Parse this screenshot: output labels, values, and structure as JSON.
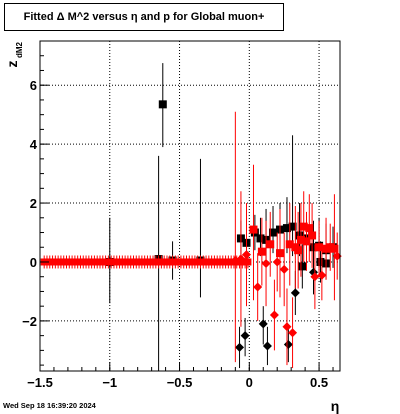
{
  "chart_data": {
    "type": "scatter",
    "title": "Fitted Δ M^2 versus η and p for Global muon+",
    "xlabel": "η",
    "ylabel": "z",
    "ylabel_sub": "dM2",
    "xlim": [
      -1.5,
      0.65
    ],
    "ylim": [
      -3.7,
      7.5
    ],
    "x_ticks": [
      -1.5,
      -1,
      -0.5,
      0,
      0.5
    ],
    "x_tick_labels": [
      "−1.5",
      "−1",
      "−0.5",
      "0",
      "0.5"
    ],
    "y_ticks": [
      -2,
      0,
      2,
      4,
      6
    ],
    "y_tick_labels": [
      "−2",
      "0",
      "2",
      "4",
      "6"
    ],
    "grid": true,
    "series": [
      {
        "color": "#000000",
        "points": [
          {
            "x": -0.62,
            "y": 5.35,
            "lo": 3.9,
            "hi": 6.75
          },
          {
            "x": -0.65,
            "y": 0.1,
            "lo": -3.7,
            "hi": 3.6
          },
          {
            "x": -0.35,
            "y": 0.05,
            "lo": -1.2,
            "hi": 3.5
          },
          {
            "x": -1.0,
            "y": 0.0,
            "lo": -1.4,
            "hi": 1.5
          },
          {
            "x": -0.55,
            "y": 0.05,
            "lo": -0.6,
            "hi": 0.7
          },
          {
            "x": -0.06,
            "y": 0.8,
            "lo": 0.2,
            "hi": 1.4
          },
          {
            "x": -0.02,
            "y": 0.65,
            "lo": 0.1,
            "hi": 1.2
          },
          {
            "x": 0.04,
            "y": 1.0,
            "lo": 0.4,
            "hi": 1.6
          },
          {
            "x": 0.08,
            "y": 0.8,
            "lo": 0.2,
            "hi": 1.5
          },
          {
            "x": 0.12,
            "y": 0.75,
            "lo": 0.1,
            "hi": 1.8
          },
          {
            "x": 0.17,
            "y": 1.0,
            "lo": 0.3,
            "hi": 1.9
          },
          {
            "x": 0.22,
            "y": 1.1,
            "lo": 0.4,
            "hi": 2.0
          },
          {
            "x": 0.27,
            "y": 1.15,
            "lo": 0.3,
            "hi": 2.2
          },
          {
            "x": 0.31,
            "y": 1.2,
            "lo": 0.2,
            "hi": 4.3
          },
          {
            "x": 0.36,
            "y": 0.9,
            "lo": 0.2,
            "hi": 2.0
          },
          {
            "x": 0.41,
            "y": 0.8,
            "lo": 0.1,
            "hi": 1.6
          },
          {
            "x": 0.46,
            "y": 0.5,
            "lo": -0.3,
            "hi": 1.4
          },
          {
            "x": 0.5,
            "y": 0.55,
            "lo": -0.2,
            "hi": 1.5
          },
          {
            "x": 0.55,
            "y": 0.4,
            "lo": -0.3,
            "hi": 1.3
          },
          {
            "x": 0.6,
            "y": 0.5,
            "lo": -0.2,
            "hi": 1.2
          },
          {
            "x": -0.07,
            "y": -2.9,
            "lo": -3.6,
            "hi": -2.2
          },
          {
            "x": -0.03,
            "y": -2.5,
            "lo": -3.2,
            "hi": -1.9
          },
          {
            "x": 0.1,
            "y": -2.1,
            "lo": -2.8,
            "hi": -1.5
          },
          {
            "x": 0.13,
            "y": -2.85,
            "lo": -3.5,
            "hi": -2.2
          },
          {
            "x": 0.28,
            "y": -2.8,
            "lo": -3.4,
            "hi": -2.2
          },
          {
            "x": 0.33,
            "y": -1.05,
            "lo": -1.8,
            "hi": -0.3
          },
          {
            "x": 0.38,
            "y": -0.15,
            "lo": -0.9,
            "hi": 0.6
          },
          {
            "x": 0.46,
            "y": -0.35,
            "lo": -1.1,
            "hi": 0.4
          },
          {
            "x": 0.51,
            "y": 0.0,
            "lo": -0.7,
            "hi": 0.7
          },
          {
            "x": 0.55,
            "y": -0.05,
            "lo": -0.6,
            "hi": 0.5
          }
        ]
      },
      {
        "color": "#ff0000",
        "band": {
          "x_start": -1.47,
          "x_end": 0.0,
          "step": 0.02,
          "y": 0.0,
          "err": 0.22
        },
        "points": [
          {
            "x": -0.1,
            "y": 0.05,
            "lo": -3.4,
            "hi": 5.1
          },
          {
            "x": -0.06,
            "y": 0.1,
            "lo": -2.2,
            "hi": 2.4
          },
          {
            "x": -0.02,
            "y": 0.25,
            "lo": -1.5,
            "hi": 2.0
          },
          {
            "x": 0.03,
            "y": 1.1,
            "lo": -1.3,
            "hi": 3.3
          },
          {
            "x": 0.06,
            "y": -0.85,
            "lo": -2.0,
            "hi": 0.3
          },
          {
            "x": 0.09,
            "y": 0.35,
            "lo": -0.8,
            "hi": 1.5
          },
          {
            "x": 0.12,
            "y": -0.05,
            "lo": -1.5,
            "hi": 1.4
          },
          {
            "x": 0.15,
            "y": 0.6,
            "lo": -0.5,
            "hi": 1.7
          },
          {
            "x": 0.18,
            "y": -1.8,
            "lo": -3.0,
            "hi": -0.6
          },
          {
            "x": 0.2,
            "y": 0.0,
            "lo": -1.0,
            "hi": 1.0
          },
          {
            "x": 0.22,
            "y": 0.3,
            "lo": -1.2,
            "hi": 1.8
          },
          {
            "x": 0.25,
            "y": -0.25,
            "lo": -1.5,
            "hi": 1.0
          },
          {
            "x": 0.27,
            "y": -2.2,
            "lo": -3.5,
            "hi": -0.9
          },
          {
            "x": 0.29,
            "y": 0.6,
            "lo": -0.8,
            "hi": 2.0
          },
          {
            "x": 0.31,
            "y": -2.4,
            "lo": -3.6,
            "hi": -1.2
          },
          {
            "x": 0.33,
            "y": 0.5,
            "lo": -0.9,
            "hi": 1.9
          },
          {
            "x": 0.35,
            "y": 0.4,
            "lo": -0.9,
            "hi": 1.7
          },
          {
            "x": 0.37,
            "y": 0.75,
            "lo": -0.5,
            "hi": 2.0
          },
          {
            "x": 0.39,
            "y": 1.2,
            "lo": 0.0,
            "hi": 2.4
          },
          {
            "x": 0.41,
            "y": 0.7,
            "lo": -0.3,
            "hi": 1.7
          },
          {
            "x": 0.43,
            "y": 1.15,
            "lo": 0.0,
            "hi": 2.3
          },
          {
            "x": 0.45,
            "y": 0.9,
            "lo": -0.2,
            "hi": 2.0
          },
          {
            "x": 0.47,
            "y": -0.5,
            "lo": -1.6,
            "hi": 0.6
          },
          {
            "x": 0.5,
            "y": 0.5,
            "lo": -0.4,
            "hi": 1.4
          },
          {
            "x": 0.52,
            "y": -0.45,
            "lo": -1.3,
            "hi": 0.4
          },
          {
            "x": 0.55,
            "y": 0.45,
            "lo": -0.6,
            "hi": 1.5
          },
          {
            "x": 0.58,
            "y": 0.5,
            "lo": -0.3,
            "hi": 1.3
          },
          {
            "x": 0.61,
            "y": 0.45,
            "lo": -1.3,
            "hi": 2.3
          },
          {
            "x": 0.63,
            "y": 0.2,
            "lo": -0.6,
            "hi": 1.0
          }
        ]
      }
    ]
  },
  "timestamp": "Wed Sep 18 16:39:20 2024"
}
